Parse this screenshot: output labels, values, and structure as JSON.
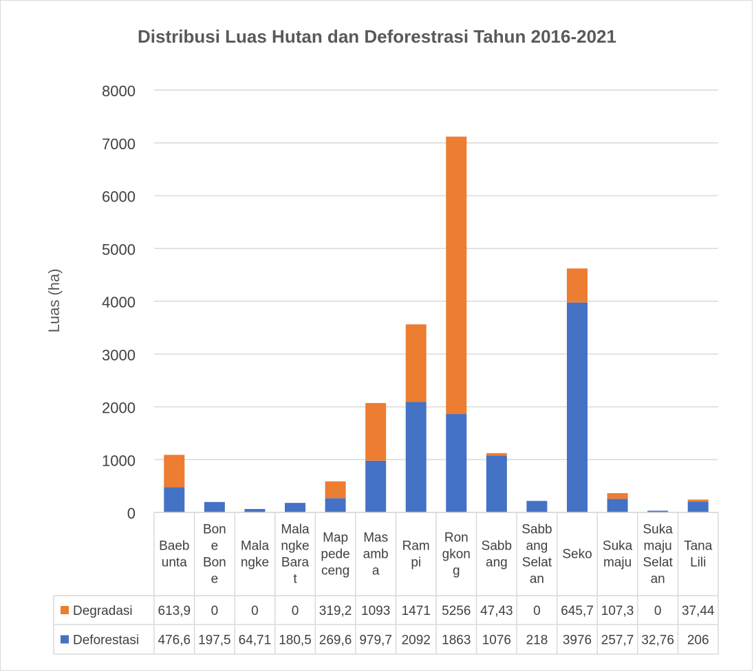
{
  "chart_data": {
    "type": "bar",
    "stacked": true,
    "title": "Distribusi Luas Hutan dan Deforestrasi Tahun 2016-2021",
    "ylabel": "Luas (ha)",
    "ylim": [
      0,
      8000
    ],
    "yticks": [
      "0",
      "1000",
      "2000",
      "3000",
      "4000",
      "5000",
      "6000",
      "7000",
      "8000"
    ],
    "grid": true,
    "data_table": true,
    "categories": [
      [
        "Baeb",
        "unta"
      ],
      [
        "Bon",
        "e",
        "Bon",
        "e"
      ],
      [
        "Mala",
        "ngke"
      ],
      [
        "Mala",
        "ngke",
        "Bara",
        "t"
      ],
      [
        "Map",
        "pede",
        "ceng"
      ],
      [
        "Mas",
        "amb",
        "a"
      ],
      [
        "Ram",
        "pi"
      ],
      [
        "Ron",
        "gkon",
        "g"
      ],
      [
        "Sabb",
        "ang"
      ],
      [
        "Sabb",
        "ang",
        "Selat",
        "an"
      ],
      [
        "Seko"
      ],
      [
        "Suka",
        "maju"
      ],
      [
        "Suka",
        "maju",
        "Selat",
        "an"
      ],
      [
        "Tana",
        "Lili"
      ]
    ],
    "series": [
      {
        "name": "Degradasi",
        "color": "#ED7D31",
        "values": [
          613.9,
          0,
          0,
          0,
          319.2,
          1093,
          1471,
          5256,
          47.43,
          0,
          645.7,
          107.3,
          0,
          37.44
        ],
        "labels": [
          "613,9",
          "0",
          "0",
          "0",
          "319,2",
          "1093",
          "1471",
          "5256",
          "47,43",
          "0",
          "645,7",
          "107,3",
          "0",
          "37,44"
        ]
      },
      {
        "name": "Deforestasi",
        "color": "#4472C4",
        "values": [
          476.6,
          197.5,
          64.71,
          180.5,
          269.6,
          979.7,
          2092,
          1863,
          1076,
          218,
          3976,
          257.7,
          32.76,
          206
        ],
        "labels": [
          "476,6",
          "197,5",
          "64,71",
          "180,5",
          "269,6",
          "979,7",
          "2092",
          "1863",
          "1076",
          "218",
          "3976",
          "257,7",
          "32,76",
          "206"
        ]
      }
    ]
  }
}
